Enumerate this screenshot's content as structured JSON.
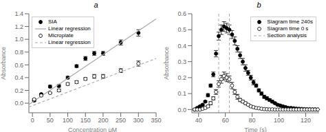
{
  "chart_data": [
    {
      "type": "scatter",
      "title": "a",
      "x_label": "Concentration μM",
      "y_label": "Absorbance",
      "xlim": [
        -10,
        350
      ],
      "ylim": [
        -0.15,
        1.4
      ],
      "xticks": [
        0,
        50,
        100,
        150,
        200,
        250,
        300,
        350
      ],
      "yticks": [
        {
          "value": 0,
          "label": "0.0"
        },
        0.2,
        0.4,
        0.6,
        0.8,
        {
          "value": 1,
          "label": "1.0"
        },
        1.2,
        1.4
      ],
      "legend": "upper left",
      "series": [
        {
          "name": "SIA",
          "type": "scatter",
          "color": "#000000",
          "marker": "filled_circle",
          "x": [
            5,
            25,
            50,
            75,
            100,
            125,
            150,
            175,
            200,
            250,
            300
          ],
          "values": [
            0.04,
            0.14,
            0.26,
            0.27,
            0.4,
            0.58,
            0.7,
            0.78,
            0.78,
            0.95,
            1.1
          ],
          "yerr": [
            0.01,
            0.01,
            0.02,
            0.02,
            0.02,
            0.02,
            0.03,
            0.03,
            0.03,
            0.04,
            0.05
          ]
        },
        {
          "name": "Linear regression",
          "type": "line",
          "color": "#aaaaaa",
          "line_style": "solid",
          "x": [
            -10,
            350
          ],
          "values": [
            -0.02,
            1.32
          ]
        },
        {
          "name": "Microplate",
          "type": "scatter",
          "color": "#000000",
          "marker": "open_circle",
          "x": [
            5,
            25,
            50,
            75,
            100,
            125,
            150,
            175,
            200,
            250,
            300
          ],
          "values": [
            0.06,
            0.12,
            0.16,
            0.2,
            0.3,
            0.33,
            0.38,
            0.42,
            0.42,
            0.51,
            0.62
          ],
          "yerr": [
            0.01,
            0.01,
            0.01,
            0.02,
            0.02,
            0.02,
            0.02,
            0.03,
            0.03,
            0.03,
            0.04
          ]
        },
        {
          "name": "Linear regression",
          "type": "line",
          "color": "#aaaaaa",
          "line_style": "dashed",
          "x": [
            -10,
            350
          ],
          "values": [
            -0.06,
            0.7
          ]
        }
      ]
    },
    {
      "type": "scatter",
      "title": "b",
      "x_label": "Time (s)",
      "y_label": "Absorbance",
      "xlim": [
        35,
        130
      ],
      "ylim": [
        -0.02,
        0.6
      ],
      "xticks": [
        40,
        60,
        80,
        100,
        120
      ],
      "yticks": [
        {
          "value": 0,
          "label": "0.0"
        },
        0.1,
        0.2,
        0.3,
        0.4,
        0.5,
        0.6
      ],
      "legend": "upper right",
      "series": [
        {
          "name": "Siagram time 240s",
          "type": "scatter",
          "color": "#000000",
          "marker": "filled_circle",
          "x": [
            37,
            39,
            41,
            43,
            45,
            47,
            49,
            51,
            53,
            55,
            57,
            59,
            61,
            63,
            65,
            67,
            69,
            71,
            73,
            75,
            77,
            79,
            81,
            83,
            85,
            87,
            89,
            91,
            93,
            95,
            97,
            99,
            101,
            103,
            105,
            107,
            109,
            111,
            113,
            115,
            117,
            119,
            121,
            123,
            125,
            127,
            129
          ],
          "values": [
            0.0,
            0.01,
            0.02,
            0.03,
            0.05,
            0.09,
            0.15,
            0.22,
            0.35,
            0.46,
            0.5,
            0.52,
            0.51,
            0.5,
            0.47,
            0.43,
            0.38,
            0.34,
            0.3,
            0.26,
            0.23,
            0.2,
            0.17,
            0.15,
            0.12,
            0.1,
            0.08,
            0.07,
            0.06,
            0.05,
            0.04,
            0.03,
            0.025,
            0.02,
            0.015,
            0.01,
            0.01,
            0.008,
            0.006,
            0.005,
            0.004,
            0.003,
            0.002,
            0.002,
            0.001,
            0.001,
            0.0
          ],
          "yerr": [
            0.005,
            0.005,
            0.005,
            0.005,
            0.005,
            0.01,
            0.01,
            0.015,
            0.02,
            0.025,
            0.03,
            0.03,
            0.03,
            0.03,
            0.025,
            0.025,
            0.02,
            0.02,
            0.02,
            0.02,
            0.015,
            0.015,
            0.015,
            0.01,
            0.01,
            0.01,
            0.01,
            0.01,
            0.008,
            0.008,
            0.006,
            0.006,
            0.005,
            0.005,
            0.005,
            0.004,
            0.004,
            0.003,
            0.003,
            0.003,
            0.003,
            0.002,
            0.002,
            0.002,
            0.001,
            0.001,
            0.001
          ]
        },
        {
          "name": "Siagram time 0 s",
          "type": "scatter",
          "color": "#000000",
          "marker": "open_circle",
          "x": [
            37,
            39,
            41,
            43,
            45,
            47,
            49,
            51,
            53,
            55,
            57,
            59,
            61,
            63,
            65,
            67,
            69,
            71,
            73,
            75,
            77,
            79,
            81,
            83,
            85,
            87,
            89,
            91,
            93,
            95,
            97,
            99,
            101,
            103,
            105,
            107,
            109,
            111,
            113,
            115,
            117,
            119,
            121,
            123,
            125,
            127,
            129
          ],
          "values": [
            0.0,
            0.0,
            0.0,
            0.005,
            0.01,
            0.02,
            0.04,
            0.07,
            0.11,
            0.16,
            0.19,
            0.21,
            0.2,
            0.19,
            0.15,
            0.11,
            0.08,
            0.06,
            0.05,
            0.04,
            0.03,
            0.02,
            0.015,
            0.01,
            0.008,
            0.005,
            0.003,
            0.002,
            0.001,
            0.001,
            0.0,
            0.0,
            0.0,
            0.0,
            0.0,
            0.0,
            0.0,
            0.0,
            0.0,
            0.0,
            0.0,
            0.0,
            0.0,
            0.0,
            0.0,
            0.0,
            0.0
          ],
          "yerr": [
            0.003,
            0.003,
            0.003,
            0.003,
            0.005,
            0.007,
            0.01,
            0.01,
            0.015,
            0.02,
            0.025,
            0.025,
            0.025,
            0.02,
            0.02,
            0.015,
            0.015,
            0.01,
            0.008,
            0.008,
            0.006,
            0.006,
            0.005,
            0.005,
            0.004,
            0.003,
            0.003,
            0.002,
            0.002,
            0.002,
            0.001,
            0.001,
            0.001,
            0.001,
            0.001,
            0.001,
            0.001,
            0.001,
            0.001,
            0.001,
            0.001,
            0.001,
            0.001,
            0.001,
            0.001,
            0.001,
            0.001
          ]
        },
        {
          "name": "Section analysis",
          "type": "vline",
          "color": "#aaaaaa",
          "line_style": "dashed",
          "x": [
            55,
            63
          ]
        }
      ]
    }
  ]
}
